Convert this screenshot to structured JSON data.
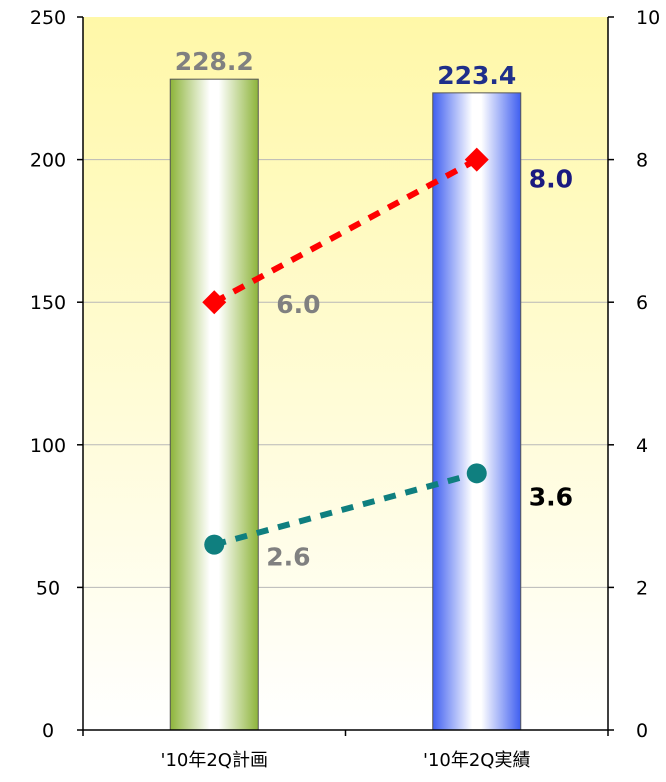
{
  "chart_data": {
    "type": "bar",
    "categories": [
      "'10年2Q計画",
      "'10年2Q実績"
    ],
    "y_left": {
      "ylim": [
        0,
        250
      ],
      "ticks": [
        0,
        50,
        100,
        150,
        200,
        250
      ]
    },
    "y_right": {
      "ylim": [
        0,
        10
      ],
      "ticks": [
        0,
        2,
        4,
        6,
        8,
        10
      ]
    },
    "grid": true,
    "bars": {
      "values": [
        228.2,
        223.4
      ],
      "labels": [
        "228.2",
        "223.4"
      ],
      "colors": [
        "#8db43a",
        "#3f5ff0"
      ],
      "label_colors": [
        "#808080",
        "#1f2f8a"
      ]
    },
    "lines": [
      {
        "marker": "diamond",
        "color": "#ff0000",
        "axis": "right",
        "values": [
          6.0,
          8.0
        ],
        "labels": [
          "6.0",
          "8.0"
        ],
        "label_colors": [
          "#808080",
          "#1a1a80"
        ]
      },
      {
        "marker": "circle",
        "color": "#0f7f7f",
        "axis": "right",
        "values": [
          2.6,
          3.6
        ],
        "labels": [
          "2.6",
          "3.6"
        ],
        "label_colors": [
          "#808080",
          "#000000"
        ]
      }
    ],
    "colors": {
      "plot_bg_top": "#fff8a8",
      "plot_bg_bottom": "#ffffff",
      "grid": "#b8b8b8",
      "axis": "#000000"
    }
  }
}
